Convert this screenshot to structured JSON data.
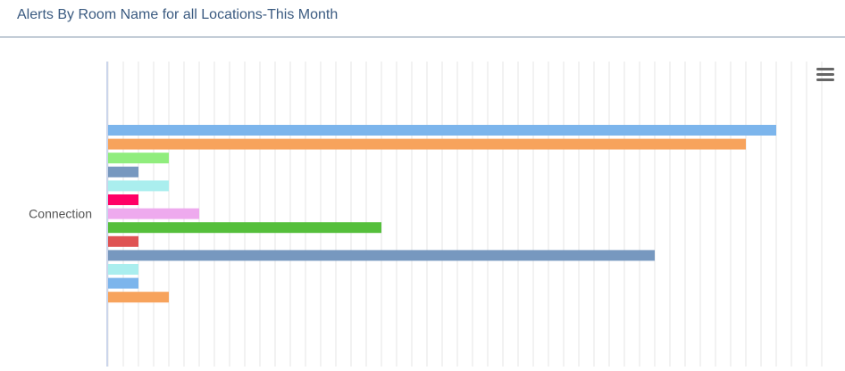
{
  "header": {
    "title": "Alerts By Room Name for all Locations-This Month"
  },
  "chart_data": {
    "type": "bar",
    "orientation": "horizontal",
    "title": "",
    "xlabel": "",
    "ylabel": "",
    "categories": [
      "Connection"
    ],
    "xlim": [
      0,
      23.5
    ],
    "grid": true,
    "series": [
      {
        "values": [
          22
        ],
        "color": "#7cb5ec"
      },
      {
        "values": [
          21
        ],
        "color": "#f7a35c"
      },
      {
        "values": [
          2
        ],
        "color": "#90ed7d"
      },
      {
        "values": [
          1
        ],
        "color": "#7798bf"
      },
      {
        "values": [
          2
        ],
        "color": "#aaeeee"
      },
      {
        "values": [
          1
        ],
        "color": "#ff0066"
      },
      {
        "values": [
          3
        ],
        "color": "#eeaaee"
      },
      {
        "values": [
          9
        ],
        "color": "#55bf3b"
      },
      {
        "values": [
          1
        ],
        "color": "#df5353"
      },
      {
        "values": [
          18
        ],
        "color": "#7798bf"
      },
      {
        "values": [
          1
        ],
        "color": "#aaeeee"
      },
      {
        "values": [
          1
        ],
        "color": "#7cb5ec"
      },
      {
        "values": [
          2
        ],
        "color": "#f7a35c"
      }
    ]
  },
  "menu": {
    "icon": "hamburger-menu-icon"
  }
}
